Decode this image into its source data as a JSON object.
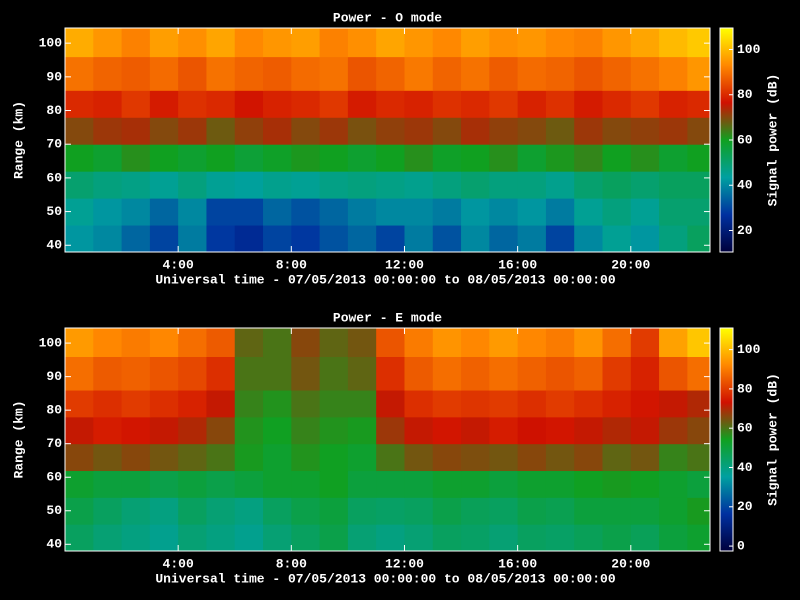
{
  "chart_data": [
    {
      "type": "heatmap",
      "title": "Power - O mode",
      "xlabel": "Universal time - 07/05/2013 00:00:00 to 08/05/2013 00:00:00",
      "ylabel": "Range (km)",
      "colorbar_label": "Signal power (dB)",
      "x_edges": [
        0,
        1,
        2,
        3,
        4,
        5,
        6,
        7,
        8,
        9,
        10,
        11,
        12,
        13,
        14,
        15,
        16,
        17,
        18,
        19,
        20,
        21,
        22,
        22.8
      ],
      "y_edges": [
        38,
        46,
        54,
        62,
        70,
        78,
        86,
        96,
        104.5
      ],
      "z": [
        [
          42,
          40,
          35,
          30,
          38,
          28,
          25,
          30,
          28,
          32,
          35,
          30,
          38,
          32,
          40,
          35,
          38,
          30,
          40,
          45,
          42,
          48,
          52
        ],
        [
          45,
          42,
          40,
          35,
          40,
          30,
          30,
          35,
          32,
          35,
          38,
          40,
          40,
          38,
          42,
          40,
          42,
          38,
          45,
          48,
          45,
          50,
          50
        ],
        [
          50,
          48,
          47,
          45,
          48,
          45,
          44,
          46,
          45,
          47,
          48,
          47,
          46,
          48,
          50,
          48,
          48,
          46,
          50,
          52,
          50,
          52,
          52
        ],
        [
          60,
          58,
          62,
          60,
          58,
          60,
          57,
          59,
          61,
          60,
          58,
          60,
          62,
          59,
          60,
          62,
          58,
          61,
          63,
          60,
          62,
          58,
          60
        ],
        [
          70,
          72,
          73,
          70,
          72,
          68,
          71,
          73,
          70,
          72,
          69,
          71,
          72,
          70,
          73,
          71,
          70,
          68,
          72,
          70,
          71,
          72,
          70
        ],
        [
          80,
          79,
          82,
          78,
          81,
          80,
          77,
          79,
          80,
          82,
          78,
          80,
          79,
          81,
          80,
          82,
          79,
          81,
          78,
          80,
          82,
          79,
          80
        ],
        [
          90,
          88,
          87,
          89,
          86,
          90,
          88,
          87,
          89,
          90,
          86,
          88,
          91,
          88,
          90,
          87,
          89,
          88,
          86,
          88,
          90,
          92,
          95
        ],
        [
          98,
          95,
          92,
          96,
          94,
          97,
          93,
          95,
          96,
          92,
          94,
          97,
          95,
          93,
          96,
          94,
          95,
          93,
          92,
          95,
          97,
          100,
          102
        ]
      ],
      "xlim": [
        0,
        22.8
      ],
      "xticks": [
        {
          "value": 4,
          "label": "4:00"
        },
        {
          "value": 8,
          "label": "8:00"
        },
        {
          "value": 12,
          "label": "12:00"
        },
        {
          "value": 16,
          "label": "16:00"
        },
        {
          "value": 20,
          "label": "20:00"
        }
      ],
      "ylim": [
        38,
        104.5
      ],
      "yticks": [
        40,
        50,
        60,
        70,
        80,
        90,
        100
      ],
      "clim": [
        10.5,
        109.5
      ],
      "cticks": [
        20,
        40,
        60,
        80,
        100
      ],
      "colormap": [
        "#00003c",
        "#0030a0",
        "#00a0a0",
        "#10a020",
        "#d01000",
        "#ff8800",
        "#ffff00"
      ]
    },
    {
      "type": "heatmap",
      "title": "Power - E mode",
      "xlabel": "Universal time - 07/05/2013 00:00:00 to 08/05/2013 00:00:00",
      "ylabel": "Range (km)",
      "colorbar_label": "Signal power (dB)",
      "x_edges": [
        0,
        1,
        2,
        3,
        4,
        5,
        6,
        7,
        8,
        9,
        10,
        11,
        12,
        13,
        14,
        15,
        16,
        17,
        18,
        19,
        20,
        21,
        22,
        22.8
      ],
      "y_edges": [
        38,
        46,
        54,
        62,
        70,
        78,
        86,
        96,
        104.5
      ],
      "z": [
        [
          45,
          42,
          40,
          38,
          42,
          40,
          38,
          42,
          45,
          48,
          42,
          40,
          42,
          45,
          44,
          42,
          45,
          44,
          46,
          48,
          46,
          50,
          52
        ],
        [
          48,
          45,
          42,
          40,
          45,
          42,
          40,
          45,
          48,
          50,
          45,
          44,
          45,
          48,
          46,
          45,
          48,
          47,
          50,
          50,
          50,
          52,
          55
        ],
        [
          52,
          50,
          50,
          48,
          50,
          48,
          50,
          52,
          52,
          54,
          50,
          50,
          50,
          52,
          52,
          50,
          52,
          52,
          54,
          55,
          54,
          52,
          50
        ],
        [
          66,
          64,
          66,
          64,
          62,
          60,
          55,
          52,
          56,
          54,
          52,
          60,
          64,
          66,
          65,
          64,
          66,
          64,
          66,
          62,
          64,
          58,
          60
        ],
        [
          72,
          75,
          74,
          72,
          70,
          66,
          56,
          54,
          58,
          56,
          55,
          68,
          72,
          74,
          72,
          75,
          73,
          74,
          72,
          70,
          72,
          68,
          66
        ],
        [
          80,
          78,
          80,
          78,
          76,
          72,
          58,
          56,
          60,
          58,
          58,
          72,
          78,
          80,
          79,
          80,
          78,
          80,
          78,
          76,
          74,
          72,
          70
        ],
        [
          88,
          85,
          86,
          84,
          82,
          78,
          60,
          60,
          64,
          60,
          62,
          78,
          85,
          88,
          86,
          88,
          86,
          84,
          86,
          80,
          76,
          84,
          88
        ],
        [
          95,
          92,
          90,
          92,
          88,
          85,
          62,
          60,
          66,
          62,
          64,
          84,
          90,
          94,
          92,
          95,
          92,
          90,
          94,
          88,
          80,
          96,
          102
        ]
      ],
      "xlim": [
        0,
        22.8
      ],
      "xticks": [
        {
          "value": 4,
          "label": "4:00"
        },
        {
          "value": 8,
          "label": "8:00"
        },
        {
          "value": 12,
          "label": "12:00"
        },
        {
          "value": 16,
          "label": "16:00"
        },
        {
          "value": 20,
          "label": "20:00"
        }
      ],
      "ylim": [
        38,
        104.5
      ],
      "yticks": [
        40,
        50,
        60,
        70,
        80,
        90,
        100
      ],
      "clim": [
        -2.5,
        111
      ],
      "cticks": [
        0,
        20,
        40,
        60,
        80,
        100
      ],
      "colormap": [
        "#00003c",
        "#0030a0",
        "#00a0a0",
        "#10a020",
        "#d01000",
        "#ff8800",
        "#ffff00"
      ]
    }
  ]
}
